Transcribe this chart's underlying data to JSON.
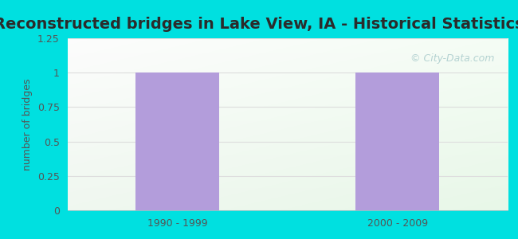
{
  "title": "Reconstructed bridges in Lake View, IA - Historical Statistics",
  "categories": [
    "1990 - 1999",
    "2000 - 2009"
  ],
  "values": [
    1,
    1
  ],
  "bar_color": "#b39ddb",
  "ylabel": "number of bridges",
  "ylim": [
    0,
    1.25
  ],
  "yticks": [
    0,
    0.25,
    0.5,
    0.75,
    1,
    1.25
  ],
  "background_outer": "#00e0e0",
  "title_fontsize": 14,
  "label_fontsize": 9,
  "tick_fontsize": 9,
  "bar_width": 0.38,
  "watermark": "© City-Data.com",
  "title_color": "#2b2b2b",
  "tick_color": "#555555",
  "ylabel_color": "#555555",
  "grid_color": "#dddddd",
  "bg_gradient_colors": [
    "#f5fff5",
    "#e0f0e0"
  ],
  "watermark_color": "#aacccc"
}
